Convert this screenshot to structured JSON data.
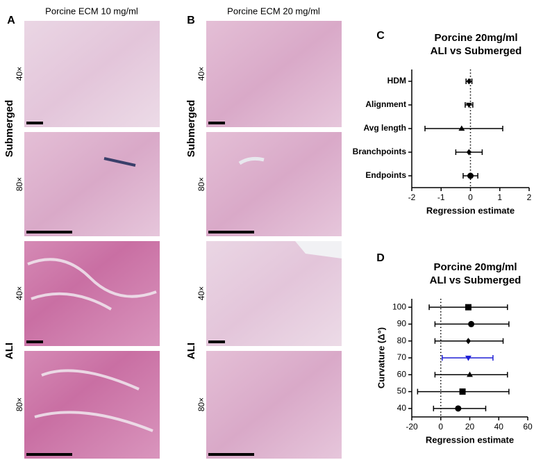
{
  "figure": {
    "panel_labels": [
      "A",
      "B",
      "C",
      "D"
    ],
    "column_headers": [
      "Porcine ECM 10 mg/ml",
      "Porcine ECM 20 mg/ml"
    ],
    "condition_labels": [
      "Submerged",
      "ALI"
    ],
    "magnification_labels": [
      "40×",
      "80×"
    ]
  },
  "chart_data": [
    {
      "type": "forest",
      "title": "Porcine 20mg/ml",
      "subtitle": "ALI vs Submerged",
      "x_label": "Regression estimate",
      "categories": [
        "HDM",
        "Alignment",
        "Avg length",
        "Branchpoints",
        "Endpoints"
      ],
      "values": [
        -0.05,
        -0.05,
        -0.3,
        -0.05,
        0
      ],
      "lower": [
        -0.15,
        -0.18,
        -1.55,
        -0.5,
        -0.25
      ],
      "upper": [
        0.05,
        0.08,
        1.1,
        0.4,
        0.25
      ],
      "markers": [
        "diamond",
        "triangle-down",
        "triangle",
        "diamond",
        "circle"
      ],
      "colors": [
        "#000000",
        "#000000",
        "#000000",
        "#000000",
        "#000000"
      ],
      "xlim": [
        -2,
        2
      ],
      "xticks": [
        -2,
        -1,
        0,
        1,
        2
      ],
      "reference_line": 0
    },
    {
      "type": "forest",
      "title": "Porcine 20mg/ml",
      "subtitle": "ALI vs Submerged",
      "x_label": "Regression estimate",
      "y_label": "Curvature (Δ°)",
      "categories": [
        "100",
        "90",
        "80",
        "70",
        "60",
        "50",
        "40"
      ],
      "values": [
        19,
        21,
        19,
        19,
        20,
        15,
        12
      ],
      "lower": [
        -8,
        -4,
        -4,
        1,
        -4,
        -16,
        -5
      ],
      "upper": [
        46,
        47,
        43,
        36,
        46,
        47,
        31
      ],
      "markers": [
        "square",
        "circle",
        "diamond",
        "triangle-down",
        "triangle",
        "square",
        "circle"
      ],
      "colors": [
        "#000000",
        "#000000",
        "#000000",
        "#1f1fd6",
        "#000000",
        "#000000",
        "#000000"
      ],
      "xlim": [
        -20,
        60
      ],
      "xticks": [
        -20,
        0,
        20,
        40,
        60
      ],
      "reference_line": 0
    }
  ]
}
